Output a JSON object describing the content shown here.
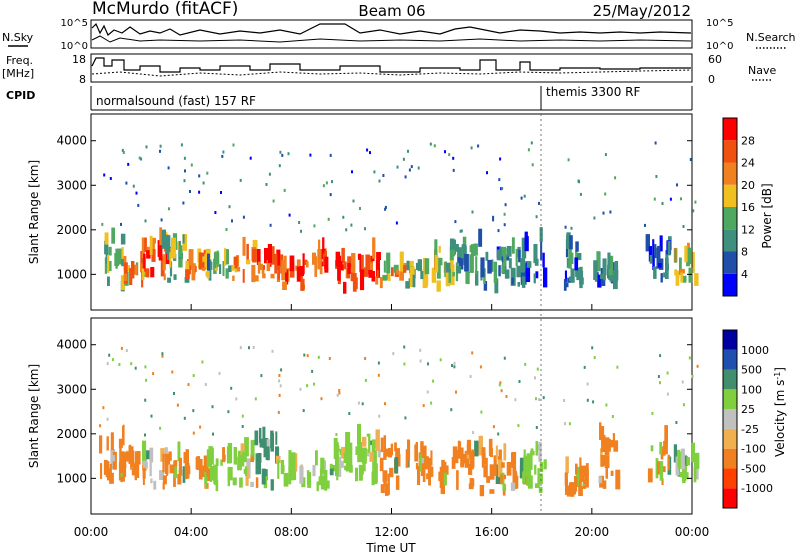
{
  "header": {
    "station": "McMurdo (fitACF)",
    "beam": "Beam 06",
    "date": "25/May/2012"
  },
  "top_panel": {
    "left_label": "N.Sky",
    "right_label": "N.Search",
    "y_ticks_left": [
      "10^5",
      "10^0"
    ],
    "y_ticks_right": [
      "10^5",
      "10^0"
    ]
  },
  "freq_panel": {
    "left_label_1": "Freq.",
    "left_label_2": "[MHz]",
    "right_label": "Nave",
    "y_ticks_left": [
      "18",
      "8"
    ],
    "y_ticks_right": [
      "60",
      "0"
    ]
  },
  "cpid_panel": {
    "label": "CPID",
    "program_1": "normalsound (fast) 157 RF",
    "program_2": "themis 3300 RF"
  },
  "colors": {
    "power": [
      "#0000ff",
      "#1f4fa8",
      "#3f8f7f",
      "#4fa85f",
      "#f0c020",
      "#f08020",
      "#f05010",
      "#ff0000"
    ],
    "velocity": [
      "#ff0000",
      "#ff4000",
      "#f08020",
      "#f0b050",
      "#c0c0c0",
      "#7fcf3f",
      "#3f8f6f",
      "#1f50b0",
      "#0000a0"
    ]
  },
  "chart_data": [
    {
      "type": "heatmap",
      "title": "",
      "xlabel": "",
      "ylabel": "Slant Range [km]",
      "x_ticks": [
        "00:00",
        "04:00",
        "08:00",
        "12:00",
        "16:00",
        "20:00",
        "00:00"
      ],
      "y_ticks": [
        "1000",
        "2000",
        "3000",
        "4000"
      ],
      "xlim": [
        0,
        24
      ],
      "ylim": [
        200,
        4600
      ],
      "colorbar": {
        "label": "Power [dB]",
        "ticks": [
          "4",
          "8",
          "12",
          "16",
          "20",
          "24",
          "28"
        ]
      },
      "series": [
        {
          "x": [
            0.8,
            1.6,
            2.5,
            3.3,
            4.2,
            5.0,
            6.0,
            7.0,
            8.0,
            9.0,
            10.0,
            11.0,
            12.0,
            13.0,
            14.0,
            15.0,
            16.0,
            16.8,
            17.6,
            19.3,
            20.5,
            22.6,
            23.7
          ],
          "values": [
            14,
            22,
            26,
            16,
            24,
            14,
            24,
            28,
            28,
            28,
            28,
            28,
            22,
            16,
            18,
            12,
            10,
            12,
            8,
            10,
            10,
            8,
            20
          ]
        }
      ]
    },
    {
      "type": "heatmap",
      "title": "",
      "xlabel": "Time UT",
      "ylabel": "Slant Range [km]",
      "x_ticks": [
        "00:00",
        "04:00",
        "08:00",
        "12:00",
        "16:00",
        "20:00",
        "00:00"
      ],
      "y_ticks": [
        "1000",
        "2000",
        "3000",
        "4000"
      ],
      "xlim": [
        0,
        24
      ],
      "ylim": [
        200,
        4600
      ],
      "colorbar": {
        "label": "Velocity [m s^-1]",
        "ticks": [
          "1000",
          "500",
          "100",
          "25",
          "-25",
          "-100",
          "-500",
          "-1000"
        ]
      },
      "series": [
        {
          "x": [
            0.8,
            1.6,
            2.5,
            3.3,
            4.2,
            5.0,
            6.0,
            7.0,
            8.0,
            9.0,
            10.0,
            11.0,
            12.0,
            13.0,
            14.0,
            15.0,
            16.0,
            16.8,
            17.6,
            19.3,
            20.5,
            22.6,
            23.7
          ],
          "values": [
            -100,
            -100,
            25,
            -100,
            -100,
            100,
            100,
            500,
            100,
            100,
            100,
            100,
            -100,
            -100,
            -100,
            -100,
            -100,
            -100,
            100,
            -100,
            -100,
            -100,
            100
          ]
        }
      ]
    }
  ]
}
